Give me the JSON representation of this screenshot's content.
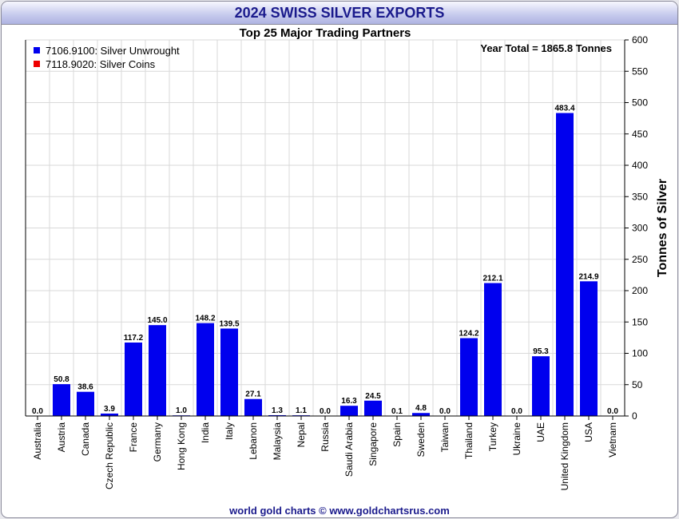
{
  "window": {
    "title": "2024 SWISS SILVER EXPORTS"
  },
  "footer": {
    "credit": "world gold charts © www.goldchartsrus.com"
  },
  "colors": {
    "unwrought": "#0000ee",
    "coins": "#ee0000",
    "title": "#1a1a8c",
    "grid": "#d9d9d9"
  },
  "chart_data": {
    "type": "bar",
    "title": "2024 SWISS SILVER EXPORTS",
    "subtitle": "Top 25 Major Trading Partners",
    "ylabel": "Tonnes of Silver",
    "xlabel": "",
    "ylim": [
      0,
      600
    ],
    "yticks": [
      "0",
      "50",
      "100",
      "150",
      "200",
      "250",
      "300",
      "350",
      "400",
      "450",
      "500",
      "550",
      "600"
    ],
    "annotation": "Year Total = 1865.8 Tonnes",
    "legend": {
      "position": "top-left",
      "entries": [
        {
          "label": "7106.9100: Silver Unwrought",
          "color": "#0000ee"
        },
        {
          "label": "7118.9020: Silver Coins",
          "color": "#ee0000"
        }
      ]
    },
    "categories": [
      "Australia",
      "Austria",
      "Canada",
      "Czech Republic",
      "France",
      "Germany",
      "Hong Kong",
      "India",
      "Italy",
      "Lebanon",
      "Malaysia",
      "Nepal",
      "Russia",
      "Saudi Arabia",
      "Singapore",
      "Spain",
      "Sweden",
      "Taiwan",
      "Thailand",
      "Turkey",
      "Ukraine",
      "UAE",
      "United Kingdom",
      "USA",
      "Vietnam"
    ],
    "values": [
      0.0,
      50.8,
      38.6,
      3.9,
      117.2,
      145.0,
      1.0,
      148.2,
      139.5,
      27.1,
      1.3,
      1.1,
      0.0,
      16.3,
      24.5,
      0.1,
      4.8,
      0.0,
      124.2,
      212.1,
      0.0,
      95.3,
      483.4,
      214.9,
      0.0
    ],
    "value_labels": [
      "0.0",
      "50.8",
      "38.6",
      "3.9",
      "117.2",
      "145.0",
      "1.0",
      "148.2",
      "139.5",
      "27.1",
      "1.3",
      "1.1",
      "0.0",
      "16.3",
      "24.5",
      "0.1",
      "4.8",
      "0.0",
      "124.2",
      "212.1",
      "0.0",
      "95.3",
      "483.4",
      "214.9",
      "0.0"
    ]
  }
}
